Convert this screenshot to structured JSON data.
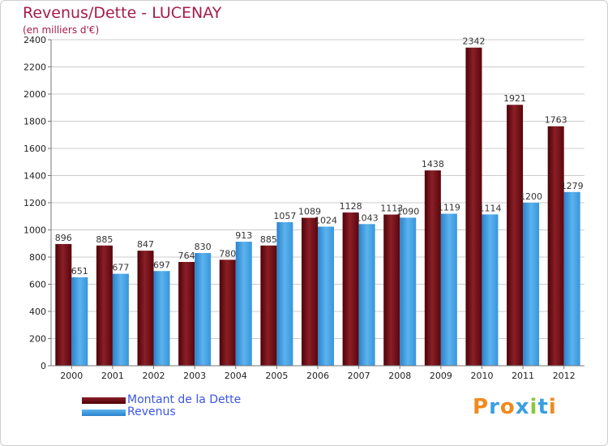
{
  "title": "Revenus/Dette - LUCENAY",
  "subtitle": "(en milliers d'€)",
  "logo_text": "Proxiti",
  "chart_data": {
    "type": "bar",
    "title": "Revenus/Dette - LUCENAY",
    "subtitle": "(en milliers d'€)",
    "categories": [
      "2000",
      "2001",
      "2002",
      "2003",
      "2004",
      "2005",
      "2006",
      "2007",
      "2008",
      "2009",
      "2010",
      "2011",
      "2012"
    ],
    "series": [
      {
        "name": "Montant de la Dette",
        "color": "#6b0a12",
        "values": [
          896,
          885,
          847,
          764,
          780,
          885,
          1089,
          1128,
          1113,
          1438,
          2342,
          1921,
          1763
        ]
      },
      {
        "name": "Revenus",
        "color": "#3a9be0",
        "values": [
          651,
          677,
          697,
          830,
          913,
          1057,
          1024,
          1043,
          1090,
          1119,
          1114,
          1200,
          1279
        ]
      }
    ],
    "y_ticks": [
      0,
      200,
      400,
      600,
      800,
      1000,
      1200,
      1400,
      1600,
      1800,
      2000,
      2200,
      2400
    ],
    "ylim": [
      0,
      2400
    ],
    "grid": true,
    "legend_position": "bottom-left",
    "xlabel": "",
    "ylabel": ""
  },
  "colors": {
    "title": "#a51b4b",
    "legend_text": "#3a56e6",
    "grid": "#cccccc",
    "axis": "#777777"
  }
}
